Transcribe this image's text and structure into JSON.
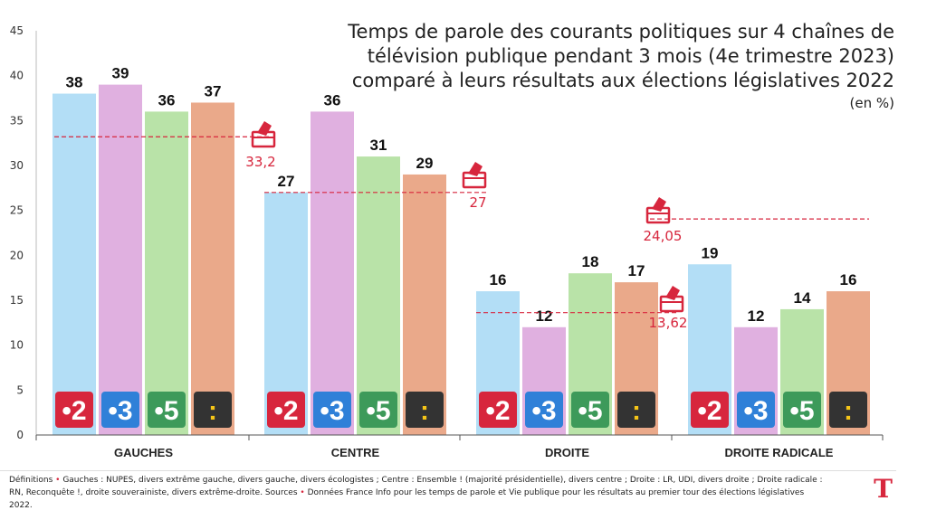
{
  "chart_data": {
    "type": "bar",
    "title_lines": [
      "Temps de parole des courants politiques sur 4 chaînes de",
      "télévision publique pendant 3 mois (4e trimestre 2023)",
      "comparé à leurs résultats aux élections législatives 2022"
    ],
    "unit": "(en %)",
    "categories": [
      "GAUCHES",
      "CENTRE",
      "DROITE",
      "DROITE RADICALE"
    ],
    "series": [
      {
        "name": "2",
        "color": "#b3def6",
        "values": [
          38,
          27,
          16,
          19
        ]
      },
      {
        "name": "3",
        "color": "#e0b0e0",
        "values": [
          39,
          36,
          12,
          12
        ]
      },
      {
        "name": "5",
        "color": "#b9e3a8",
        "values": [
          36,
          31,
          18,
          14
        ]
      },
      {
        "name": ":",
        "color": "#eaa98a",
        "values": [
          37,
          29,
          17,
          16
        ]
      }
    ],
    "election_results": [
      {
        "value": 33.2,
        "label": "33,2"
      },
      {
        "value": 27,
        "label": "27"
      },
      {
        "value": 13.62,
        "label": "13,62"
      },
      {
        "value": 24.05,
        "label": "24,05"
      }
    ],
    "y_ticks": [
      "0",
      "5",
      "10",
      "15",
      "20",
      "25",
      "30",
      "35",
      "40",
      "45"
    ],
    "ylim": [
      0,
      45
    ],
    "channel_badges": [
      {
        "label": "•2",
        "color": "#d7263d"
      },
      {
        "label": "•3",
        "color": "#2f80d8"
      },
      {
        "label": "•5",
        "color": "#3d9a5a"
      },
      {
        "label": ":",
        "color": "#333333",
        "text_color": "#f5c518"
      }
    ],
    "accent_color": "#d7263d",
    "grid": false
  },
  "footer": {
    "part1": "Définitions ",
    "dot1": "•",
    "part2": " Gauches : NUPES, divers extrême gauche, divers gauche, divers écologistes ; Centre : Ensemble ! (majorité présidentielle), divers centre ; Droite : LR, UDI, divers droite ; Droite radicale : RN, Reconquête !, droite souverainiste, divers extrême-droite. Sources ",
    "dot2": "•",
    "part3": " Données France Info pour les temps de parole et Vie publique pour les résultats au premier tour des élections législatives 2022."
  },
  "logo": {
    "letter": "T",
    "icon": "ballot-box-icon"
  }
}
